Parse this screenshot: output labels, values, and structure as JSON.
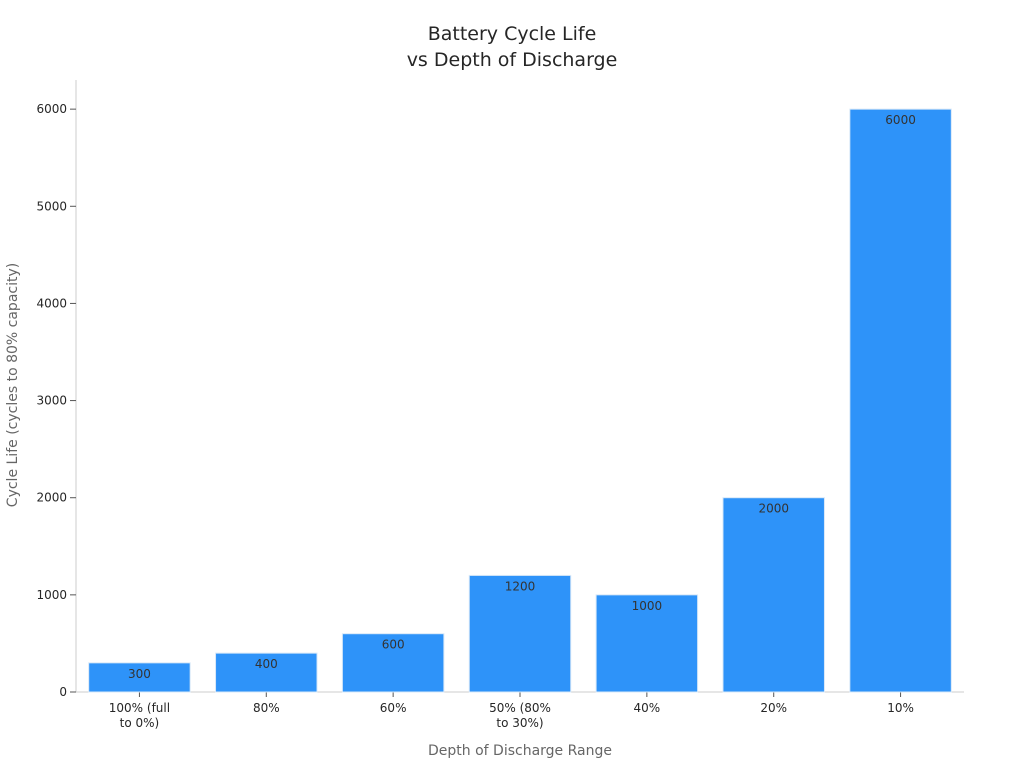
{
  "chart_data": {
    "type": "bar",
    "title_lines": [
      "Battery Cycle Life",
      "vs Depth of Discharge"
    ],
    "xlabel": "Depth of Discharge Range",
    "ylabel": "Cycle Life (cycles to 80% capacity)",
    "categories": [
      [
        "100% (full",
        "to 0%)"
      ],
      [
        "80%"
      ],
      [
        "60%"
      ],
      [
        "50% (80%",
        "to 30%)"
      ],
      [
        "40%"
      ],
      [
        "20%"
      ],
      [
        "10%"
      ]
    ],
    "values": [
      300,
      400,
      600,
      1200,
      1000,
      2000,
      6000
    ],
    "data_labels": [
      "300",
      "400",
      "600",
      "1200",
      "1000",
      "2000",
      "6000"
    ],
    "y_ticks": [
      0,
      1000,
      2000,
      3000,
      4000,
      5000,
      6000
    ],
    "y_tick_labels": [
      "0",
      "1000",
      "2000",
      "3000",
      "4000",
      "5000",
      "6000"
    ],
    "ylim": [
      0,
      6300
    ],
    "grid": false,
    "legend": "none",
    "bar_color": "#2e93f9"
  }
}
